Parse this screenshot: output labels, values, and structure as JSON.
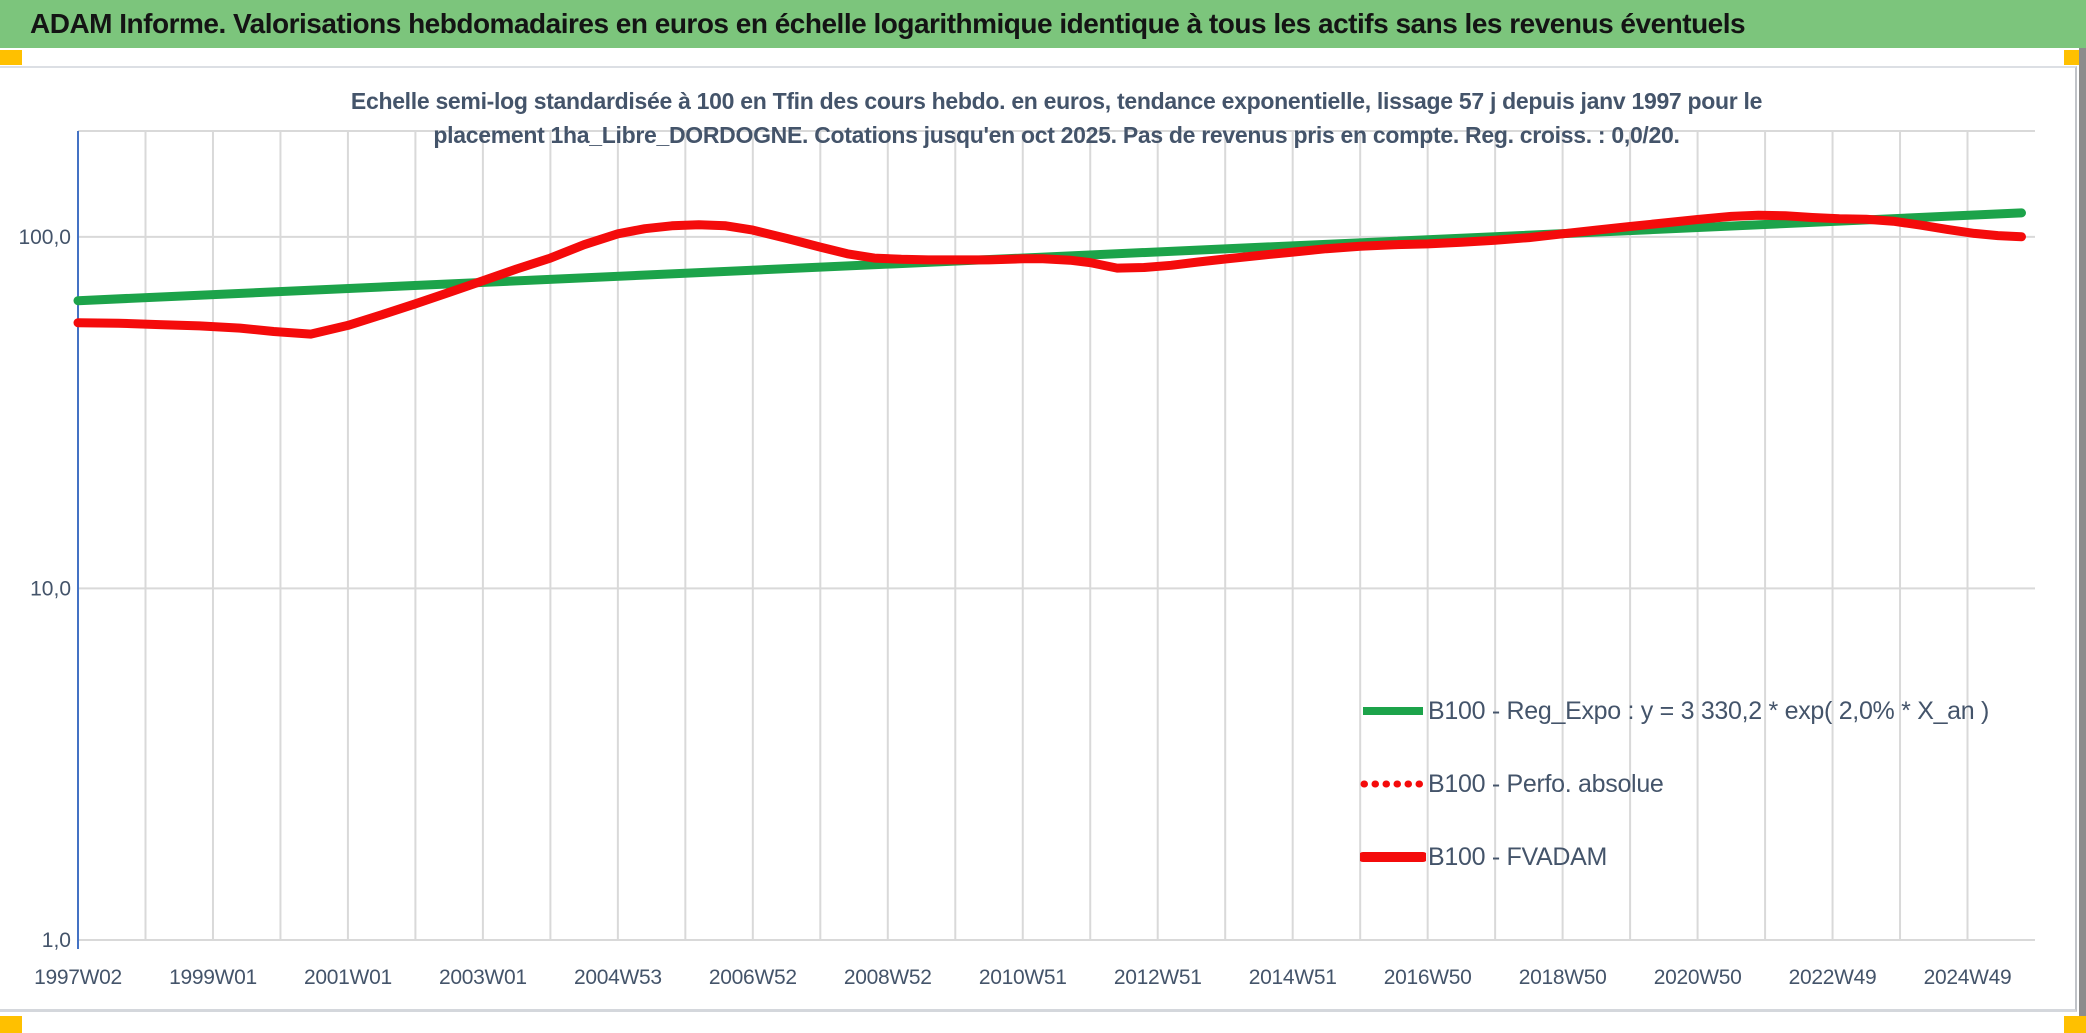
{
  "header": {
    "title": "ADAM Informe. Valorisations hebdomadaires en euros en échelle logarithmique identique à tous les actifs sans les revenus éventuels"
  },
  "colors": {
    "header_bg": "#7CC57C",
    "header_text": "#141414",
    "accent_square": "#FFC000",
    "chart_text": "#44546A",
    "gridline": "#D9D9D9",
    "plot_border": "#D9D9D9",
    "y_axis": "#4472C4",
    "green_series": "#1CA34A",
    "red_series": "#F40B0B",
    "window_edge": "#8C8C8C"
  },
  "chart_data": {
    "type": "line",
    "title_line1": "Echelle semi-log standardisée à 100 en Tfin des cours hebdo. en euros, tendance exponentielle, lissage 57 j depuis janv 1997 pour le",
    "title_line2": "placement 1ha_Libre_DORDOGNE. Cotations jusqu'en oct 2025. Pas de revenus pris en compte. Reg. croiss. : 0,0/20.",
    "y_scale": "log",
    "ylim": [
      1,
      200
    ],
    "xlim_years": [
      1997.0,
      2026.0
    ],
    "grid": "yearly vertical lines, horizontal lines at log decades",
    "legend_position": "inside lower right",
    "x_tick_labels": [
      "1997W02",
      "1999W01",
      "2001W01",
      "2003W01",
      "2004W53",
      "2006W52",
      "2008W52",
      "2010W51",
      "2012W51",
      "2014W51",
      "2016W50",
      "2018W50",
      "2020W50",
      "2022W49",
      "2024W49"
    ],
    "x_tick_year_step": 2,
    "y_ticks": [
      {
        "label": "100,0",
        "value": 100
      },
      {
        "label": "10,0",
        "value": 10
      },
      {
        "label": "1,0",
        "value": 1
      }
    ],
    "series": [
      {
        "name": "B100 - Reg_Expo : y = 3 330,2 * exp( 2,0% *  X_an )",
        "color_key": "green_series",
        "style": "solid",
        "points": [
          [
            1997.0,
            65.8
          ],
          [
            2025.8,
            117.0
          ]
        ]
      },
      {
        "name": "B100 - Perfo. absolue",
        "color_key": "red_series",
        "style": "dotted",
        "points_same_as": "B100 - FVADAM",
        "note": "hidden beneath FVADAM line (identical values, no revenues)"
      },
      {
        "name": "B100 - FVADAM",
        "color_key": "red_series",
        "style": "solid",
        "points": [
          [
            1997.0,
            57.0
          ],
          [
            1997.6,
            56.8
          ],
          [
            1998.2,
            56.3
          ],
          [
            1998.8,
            55.8
          ],
          [
            1999.4,
            55.0
          ],
          [
            1999.9,
            53.8
          ],
          [
            2000.45,
            52.9
          ],
          [
            2001.0,
            56.0
          ],
          [
            2001.5,
            60.0
          ],
          [
            2002.0,
            64.5
          ],
          [
            2002.5,
            69.5
          ],
          [
            2003.0,
            75.0
          ],
          [
            2003.5,
            81.0
          ],
          [
            2004.0,
            87.0
          ],
          [
            2004.5,
            95.0
          ],
          [
            2005.0,
            102.0
          ],
          [
            2005.4,
            105.5
          ],
          [
            2005.8,
            107.5
          ],
          [
            2006.2,
            108.2
          ],
          [
            2006.6,
            107.5
          ],
          [
            2007.0,
            104.5
          ],
          [
            2007.5,
            99.0
          ],
          [
            2008.0,
            93.5
          ],
          [
            2008.4,
            89.5
          ],
          [
            2008.8,
            87.0
          ],
          [
            2009.2,
            86.3
          ],
          [
            2009.6,
            86.0
          ],
          [
            2010.0,
            86.0
          ],
          [
            2010.5,
            86.0
          ],
          [
            2011.0,
            86.6
          ],
          [
            2011.3,
            86.6
          ],
          [
            2011.7,
            85.8
          ],
          [
            2012.0,
            84.5
          ],
          [
            2012.4,
            81.5
          ],
          [
            2012.8,
            81.8
          ],
          [
            2013.2,
            83.0
          ],
          [
            2013.6,
            84.8
          ],
          [
            2014.0,
            86.5
          ],
          [
            2014.5,
            88.5
          ],
          [
            2015.0,
            90.5
          ],
          [
            2015.5,
            92.5
          ],
          [
            2016.0,
            94.0
          ],
          [
            2016.5,
            95.0
          ],
          [
            2017.0,
            95.5
          ],
          [
            2017.5,
            96.5
          ],
          [
            2018.0,
            97.8
          ],
          [
            2018.5,
            99.5
          ],
          [
            2019.0,
            102.0
          ],
          [
            2019.5,
            104.5
          ],
          [
            2020.0,
            107.0
          ],
          [
            2020.5,
            109.5
          ],
          [
            2021.0,
            112.0
          ],
          [
            2021.5,
            114.3
          ],
          [
            2021.9,
            115.2
          ],
          [
            2022.3,
            114.8
          ],
          [
            2022.7,
            113.5
          ],
          [
            2023.1,
            112.6
          ],
          [
            2023.5,
            112.2
          ],
          [
            2023.9,
            110.8
          ],
          [
            2024.3,
            108.0
          ],
          [
            2024.7,
            105.0
          ],
          [
            2025.1,
            102.3
          ],
          [
            2025.45,
            100.8
          ],
          [
            2025.8,
            100.0
          ]
        ]
      }
    ]
  }
}
